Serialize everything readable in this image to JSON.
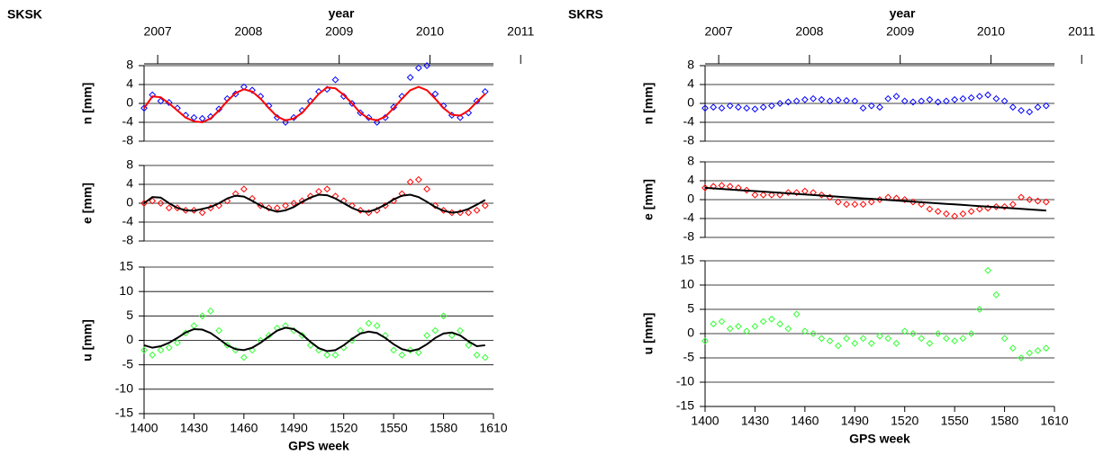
{
  "chart_data": [
    {
      "type": "scatter",
      "title": "SKSK",
      "x2label": "year",
      "x2lim": [
        2006.85,
        2010.7
      ],
      "x2ticks": [
        2007,
        2008,
        2009,
        2010,
        2011
      ],
      "ylabel": "n [mm]",
      "xlim": [
        1400,
        1610
      ],
      "ylim": [
        -8,
        8
      ],
      "yticks": [
        -8,
        -4,
        0,
        4,
        8
      ],
      "x": [
        1400,
        1405,
        1410,
        1415,
        1420,
        1425,
        1430,
        1435,
        1440,
        1445,
        1450,
        1455,
        1460,
        1465,
        1470,
        1475,
        1480,
        1485,
        1490,
        1495,
        1500,
        1505,
        1510,
        1515,
        1520,
        1525,
        1530,
        1535,
        1540,
        1545,
        1550,
        1555,
        1560,
        1565,
        1570,
        1575,
        1580,
        1585,
        1590,
        1595,
        1600,
        1605
      ],
      "series": [
        {
          "type": "scatter",
          "color": "#0000ff",
          "values": [
            -1,
            1.8,
            0.5,
            0.2,
            -1,
            -2.5,
            -3,
            -3.2,
            -2.8,
            -1.2,
            1,
            2,
            3.5,
            2.8,
            1.5,
            -0.5,
            -3,
            -4,
            -3,
            -1.5,
            0.5,
            2.5,
            3,
            5,
            1.5,
            0,
            -2,
            -3,
            -4,
            -3,
            -0.8,
            1.5,
            5.5,
            7.5,
            8,
            2,
            -0.5,
            -2.5,
            -3,
            -2,
            0.5,
            2.5
          ]
        },
        {
          "type": "line",
          "color": "#ff0000",
          "values": [
            -1,
            1.5,
            1.3,
            0,
            -1.5,
            -3,
            -3.8,
            -4,
            -3.2,
            -1.5,
            0.5,
            2.2,
            3,
            2.5,
            1,
            -1,
            -2.8,
            -3.6,
            -3.2,
            -2,
            0,
            2,
            3.4,
            3.2,
            1.8,
            0,
            -2,
            -3.2,
            -3.6,
            -2.8,
            -1,
            1,
            2.8,
            3.5,
            2.8,
            1,
            -1,
            -2.4,
            -2.6,
            -1.5,
            0.3,
            2
          ]
        }
      ]
    },
    {
      "type": "scatter",
      "ylabel": "e [mm]",
      "xlim": [
        1400,
        1610
      ],
      "ylim": [
        -8,
        8
      ],
      "yticks": [
        -8,
        -4,
        0,
        4,
        8
      ],
      "x": [
        1400,
        1405,
        1410,
        1415,
        1420,
        1425,
        1430,
        1435,
        1440,
        1445,
        1450,
        1455,
        1460,
        1465,
        1470,
        1475,
        1480,
        1485,
        1490,
        1495,
        1500,
        1505,
        1510,
        1515,
        1520,
        1525,
        1530,
        1535,
        1540,
        1545,
        1550,
        1555,
        1560,
        1565,
        1570,
        1575,
        1580,
        1585,
        1590,
        1595,
        1600,
        1605
      ],
      "series": [
        {
          "type": "scatter",
          "color": "#ff0000",
          "values": [
            0,
            0.5,
            0,
            -1,
            -1,
            -1.5,
            -1.5,
            -2,
            -1,
            -0.5,
            0.5,
            2,
            3,
            1,
            -0.5,
            -1,
            -1,
            -0.5,
            0,
            0.5,
            1.5,
            2.5,
            3,
            1.5,
            0.5,
            -0.5,
            -1.5,
            -2,
            -1.5,
            -0.5,
            0.5,
            2,
            4.5,
            5,
            3,
            -0.5,
            -1.5,
            -2,
            -2,
            -2,
            -1.5,
            -0.5
          ]
        },
        {
          "type": "line",
          "color": "#000000",
          "values": [
            0,
            1.3,
            1.2,
            0,
            -1,
            -1.5,
            -1.6,
            -1.2,
            -0.8,
            0,
            1,
            1.6,
            1.4,
            0.5,
            -0.5,
            -1.3,
            -1.8,
            -1.5,
            -0.8,
            0.3,
            1.2,
            1.8,
            1.7,
            1,
            0,
            -1,
            -1.7,
            -1.8,
            -1.2,
            -0.3,
            0.8,
            1.6,
            1.8,
            1.3,
            0.3,
            -0.8,
            -1.6,
            -2,
            -1.8,
            -1.2,
            -0.3,
            0.7
          ]
        }
      ]
    },
    {
      "type": "scatter",
      "ylabel": "u [mm]",
      "xlabel": "GPS week",
      "xlim": [
        1400,
        1610
      ],
      "xticks": [
        1400,
        1430,
        1460,
        1490,
        1520,
        1550,
        1580,
        1610
      ],
      "ylim": [
        -15,
        15
      ],
      "yticks": [
        -15,
        -10,
        -5,
        0,
        5,
        10,
        15
      ],
      "x": [
        1400,
        1405,
        1410,
        1415,
        1420,
        1425,
        1430,
        1435,
        1440,
        1445,
        1450,
        1455,
        1460,
        1465,
        1470,
        1475,
        1480,
        1485,
        1490,
        1495,
        1500,
        1505,
        1510,
        1515,
        1520,
        1525,
        1530,
        1535,
        1540,
        1545,
        1550,
        1555,
        1560,
        1565,
        1570,
        1575,
        1580,
        1585,
        1590,
        1595,
        1600,
        1605
      ],
      "series": [
        {
          "type": "scatter",
          "color": "#33ff33",
          "values": [
            -2,
            -3,
            -2,
            -1.5,
            -0.5,
            1.5,
            3,
            5,
            6,
            2,
            -1,
            -2,
            -3.5,
            -2,
            0,
            1,
            2.5,
            3,
            2,
            1,
            -1,
            -2,
            -3,
            -3,
            -1.5,
            0,
            2,
            3.5,
            3,
            1,
            -2,
            -3,
            -2,
            -2.5,
            1,
            2,
            5,
            1,
            2,
            -1,
            -3,
            -3.5
          ]
        },
        {
          "type": "line",
          "color": "#000000",
          "values": [
            -1,
            -1.5,
            -1.2,
            -0.5,
            0.5,
            1.6,
            2.3,
            2.2,
            1.5,
            0.3,
            -1,
            -1.8,
            -2,
            -1.5,
            -0.5,
            0.8,
            2,
            2.6,
            2.3,
            1.2,
            -0.3,
            -1.6,
            -2.2,
            -2,
            -1,
            0.3,
            1.4,
            1.8,
            1.5,
            0.5,
            -0.8,
            -1.8,
            -2.2,
            -1.8,
            -0.8,
            0.5,
            1.4,
            1.6,
            1,
            -0.2,
            -1.2,
            -1
          ]
        }
      ]
    },
    {
      "type": "scatter",
      "title": "SKRS",
      "x2label": "year",
      "x2lim": [
        2006.85,
        2010.7
      ],
      "x2ticks": [
        2007,
        2008,
        2009,
        2010,
        2011
      ],
      "ylabel": "n [mm]",
      "xlim": [
        1400,
        1610
      ],
      "ylim": [
        -8,
        8
      ],
      "yticks": [
        -8,
        -4,
        0,
        4,
        8
      ],
      "x": [
        1400,
        1405,
        1410,
        1415,
        1420,
        1425,
        1430,
        1435,
        1440,
        1445,
        1450,
        1455,
        1460,
        1465,
        1470,
        1475,
        1480,
        1485,
        1490,
        1495,
        1500,
        1505,
        1510,
        1515,
        1520,
        1525,
        1530,
        1535,
        1540,
        1545,
        1550,
        1555,
        1560,
        1565,
        1570,
        1575,
        1580,
        1585,
        1590,
        1595,
        1600,
        1605
      ],
      "series": [
        {
          "type": "scatter",
          "color": "#0000ff",
          "values": [
            -1,
            -0.8,
            -1,
            -0.5,
            -0.8,
            -1,
            -1.2,
            -0.8,
            -0.5,
            0,
            0.3,
            0.5,
            0.8,
            1,
            0.8,
            0.5,
            0.7,
            0.6,
            0.5,
            -1,
            -0.5,
            -0.8,
            1,
            1.5,
            0.5,
            0.3,
            0.5,
            0.8,
            0.3,
            0.5,
            0.8,
            1,
            1.2,
            1.5,
            1.8,
            1,
            0.5,
            -0.8,
            -1.5,
            -1.8,
            -0.8,
            -0.5
          ]
        }
      ]
    },
    {
      "type": "scatter",
      "ylabel": "e [mm]",
      "xlim": [
        1400,
        1610
      ],
      "ylim": [
        -8,
        8
      ],
      "yticks": [
        -8,
        -4,
        0,
        4,
        8
      ],
      "x": [
        1400,
        1405,
        1410,
        1415,
        1420,
        1425,
        1430,
        1435,
        1440,
        1445,
        1450,
        1455,
        1460,
        1465,
        1470,
        1475,
        1480,
        1485,
        1490,
        1495,
        1500,
        1505,
        1510,
        1515,
        1520,
        1525,
        1530,
        1535,
        1540,
        1545,
        1550,
        1555,
        1560,
        1565,
        1570,
        1575,
        1580,
        1585,
        1590,
        1595,
        1600,
        1605
      ],
      "series": [
        {
          "type": "scatter",
          "color": "#ff0000",
          "values": [
            2.5,
            2.8,
            3,
            2.8,
            2.5,
            2,
            1,
            1,
            1,
            1,
            1.5,
            1.5,
            1.8,
            1.5,
            1,
            0.5,
            -0.5,
            -1,
            -1,
            -1,
            -0.5,
            0,
            0.5,
            0.3,
            0,
            -0.5,
            -1,
            -2,
            -2.5,
            -3,
            -3.5,
            -3,
            -2.5,
            -2,
            -1.8,
            -1.5,
            -1.5,
            -1,
            0.5,
            0,
            -0.3,
            -0.5
          ]
        },
        {
          "type": "line",
          "color": "#000000",
          "values": [
            2.5,
            2.38,
            2.27,
            2.15,
            2.03,
            1.91,
            1.8,
            1.68,
            1.56,
            1.45,
            1.33,
            1.21,
            1.09,
            0.98,
            0.86,
            0.74,
            0.63,
            0.51,
            0.39,
            0.27,
            0.16,
            0.04,
            -0.08,
            -0.19,
            -0.31,
            -0.43,
            -0.55,
            -0.66,
            -0.78,
            -0.9,
            -1.01,
            -1.13,
            -1.25,
            -1.37,
            -1.48,
            -1.6,
            -1.72,
            -1.83,
            -1.95,
            -2.07,
            -2.18,
            -2.3
          ]
        }
      ]
    },
    {
      "type": "scatter",
      "ylabel": "u [mm]",
      "xlabel": "GPS week",
      "xlim": [
        1400,
        1610
      ],
      "xticks": [
        1400,
        1430,
        1460,
        1490,
        1520,
        1550,
        1580,
        1610
      ],
      "ylim": [
        -15,
        15
      ],
      "yticks": [
        -15,
        -10,
        -5,
        0,
        5,
        10,
        15
      ],
      "x": [
        1400,
        1405,
        1410,
        1415,
        1420,
        1425,
        1430,
        1435,
        1440,
        1445,
        1450,
        1455,
        1460,
        1465,
        1470,
        1475,
        1480,
        1485,
        1490,
        1495,
        1500,
        1505,
        1510,
        1515,
        1520,
        1525,
        1530,
        1535,
        1540,
        1545,
        1550,
        1555,
        1560,
        1565,
        1570,
        1575,
        1580,
        1585,
        1590,
        1595,
        1600,
        1605
      ],
      "series": [
        {
          "type": "scatter",
          "color": "#33ff33",
          "values": [
            -1.5,
            2,
            2.5,
            1,
            1.5,
            0.5,
            1.5,
            2.5,
            3,
            2,
            1,
            4,
            0.5,
            0,
            -1,
            -1.5,
            -2.5,
            -1,
            -2,
            -1,
            -2,
            -0.5,
            -1,
            -2,
            0.5,
            0,
            -1,
            -2,
            0,
            -1,
            -1.5,
            -1,
            0,
            5,
            13,
            8,
            -1,
            -3,
            -5,
            -4,
            -3.5,
            -3
          ]
        }
      ]
    }
  ]
}
